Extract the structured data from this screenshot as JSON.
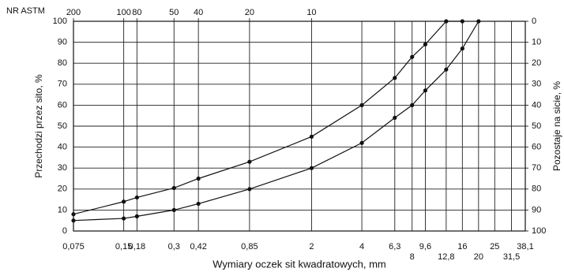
{
  "chart_data": {
    "type": "line",
    "xlabel": "Wymiary oczek sit kwadratowych, mm",
    "ylabel": "Przechodzi przez sito, %",
    "y2label": "Pozostaje na sicie, %",
    "x2label": "NR ASTM",
    "xscale": "log",
    "grid": true,
    "xlim": [
      0.075,
      38.1
    ],
    "xticks": [
      {
        "value": 0.075,
        "label": "0,075"
      },
      {
        "value": 0.15,
        "label": "0,15"
      },
      {
        "value": 0.18,
        "label": "0,18"
      },
      {
        "value": 0.3,
        "label": "0,3"
      },
      {
        "value": 0.42,
        "label": "0,42"
      },
      {
        "value": 0.85,
        "label": "0,85"
      },
      2,
      4,
      {
        "value": 6.3,
        "label": "6,3"
      },
      8,
      {
        "value": 9.6,
        "label": "9,6"
      },
      {
        "value": 12.8,
        "label": "12,8"
      },
      16,
      20,
      25,
      {
        "value": 31.5,
        "label": "31,5"
      },
      {
        "value": 38.1,
        "label": "38,1"
      }
    ],
    "x2ticks": [
      {
        "value": 0.075,
        "label": "200"
      },
      {
        "value": 0.15,
        "label": "100"
      },
      {
        "value": 0.18,
        "label": "80"
      },
      {
        "value": 0.3,
        "label": "50"
      },
      {
        "value": 0.42,
        "label": "40"
      },
      {
        "value": 0.85,
        "label": "20"
      },
      {
        "value": 2,
        "label": "10"
      }
    ],
    "ylim": [
      0,
      100
    ],
    "yticks": [
      0,
      10,
      20,
      30,
      40,
      50,
      60,
      70,
      80,
      90,
      100
    ],
    "y2lim": [
      100,
      0
    ],
    "y2ticks": [
      0,
      10,
      20,
      30,
      40,
      50,
      60,
      70,
      80,
      90,
      100
    ],
    "series": [
      {
        "color": "#111111",
        "x": [
          0.075,
          0.15,
          0.18,
          0.3,
          0.42,
          0.85,
          2,
          4,
          6.3,
          8,
          9.6,
          12.8,
          16
        ],
        "values": [
          8,
          14,
          16,
          20.5,
          25,
          33,
          45,
          60,
          73,
          83,
          89,
          100,
          100
        ]
      },
      {
        "color": "#111111",
        "x": [
          0.075,
          0.15,
          0.18,
          0.3,
          0.42,
          0.85,
          2,
          4,
          6.3,
          8,
          9.6,
          12.8,
          16,
          20
        ],
        "values": [
          5,
          6,
          7,
          10,
          13,
          20,
          30,
          42,
          54,
          60,
          67,
          77,
          87,
          100
        ]
      }
    ]
  }
}
